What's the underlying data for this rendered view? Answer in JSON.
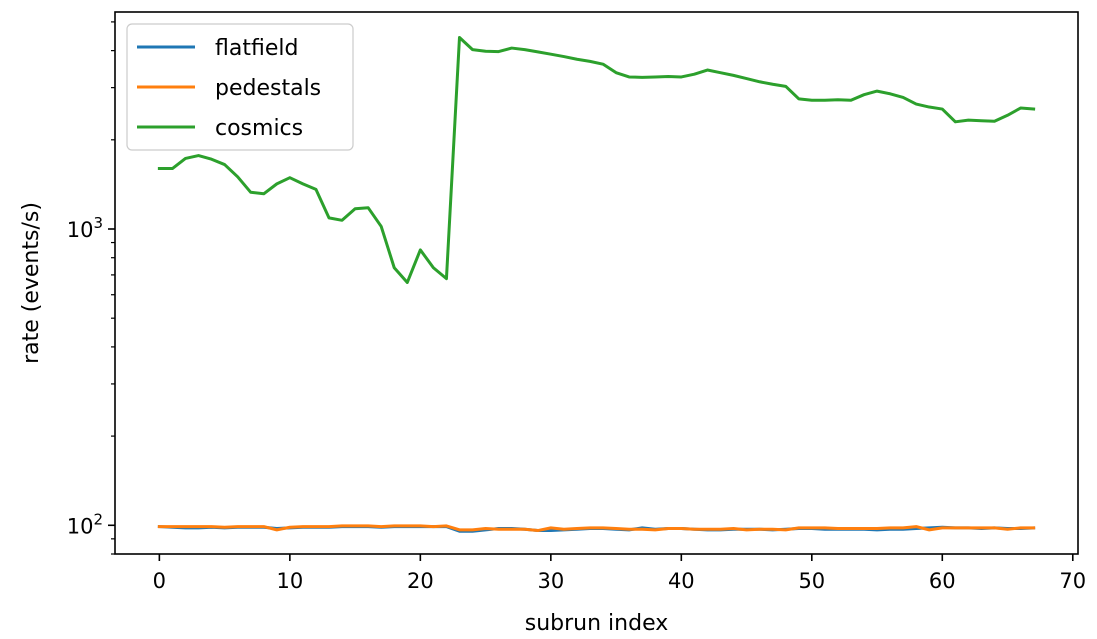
{
  "chart_data": {
    "type": "line",
    "title": "",
    "xlabel": "subrun index",
    "ylabel": "rate (events/s)",
    "xlim": [
      -3.4,
      70.4
    ],
    "ylim": [
      80,
      5400
    ],
    "yscale": "log",
    "xticks": [
      0,
      10,
      20,
      30,
      40,
      50,
      60,
      70
    ],
    "xtick_labels": [
      "0",
      "10",
      "20",
      "30",
      "40",
      "50",
      "60",
      "70"
    ],
    "yticks": [
      100,
      1000
    ],
    "ytick_labels_base": [
      "10",
      "10"
    ],
    "ytick_labels_exp": [
      "2",
      "3"
    ],
    "grid": false,
    "legend_position": "top-left",
    "series": [
      {
        "name": "flatfield",
        "color": "#1f77b4",
        "x": [
          0,
          1,
          2,
          3,
          4,
          5,
          6,
          7,
          8,
          9,
          10,
          11,
          12,
          13,
          14,
          15,
          16,
          17,
          18,
          19,
          20,
          21,
          22,
          23,
          24,
          25,
          26,
          27,
          28,
          29,
          30,
          31,
          32,
          33,
          34,
          35,
          36,
          37,
          38,
          39,
          40,
          41,
          42,
          43,
          44,
          45,
          46,
          47,
          48,
          49,
          50,
          51,
          52,
          53,
          54,
          55,
          56,
          57,
          58,
          59,
          60,
          61,
          62,
          63,
          64,
          65,
          66,
          67
        ],
        "y": [
          99,
          98.5,
          98,
          98,
          98.5,
          98,
          98.5,
          98.5,
          98.5,
          97.5,
          98,
          98.5,
          98.5,
          98.5,
          99,
          99,
          99,
          98.5,
          99,
          99,
          99,
          99,
          99,
          95.5,
          95.5,
          96.5,
          97.5,
          97.5,
          97,
          96,
          96,
          96.5,
          97,
          97.5,
          97.5,
          97,
          96.5,
          98,
          97,
          97.5,
          97.5,
          97,
          96.5,
          96.5,
          97,
          97,
          97,
          96.5,
          97,
          97.5,
          97.5,
          97,
          97,
          97,
          97,
          96.5,
          97,
          97,
          97.5,
          98,
          98.5,
          98,
          98,
          97.5,
          98,
          97.5,
          97.5,
          98
        ]
      },
      {
        "name": "pedestals",
        "color": "#ff7f0e",
        "x": [
          0,
          1,
          2,
          3,
          4,
          5,
          6,
          7,
          8,
          9,
          10,
          11,
          12,
          13,
          14,
          15,
          16,
          17,
          18,
          19,
          20,
          21,
          22,
          23,
          24,
          25,
          26,
          27,
          28,
          29,
          30,
          31,
          32,
          33,
          34,
          35,
          36,
          37,
          38,
          39,
          40,
          41,
          42,
          43,
          44,
          45,
          46,
          47,
          48,
          49,
          50,
          51,
          52,
          53,
          54,
          55,
          56,
          57,
          58,
          59,
          60,
          61,
          62,
          63,
          64,
          65,
          66,
          67
        ],
        "y": [
          99,
          99,
          99,
          99,
          99,
          98.5,
          99,
          99,
          99,
          96.5,
          98.5,
          99,
          99,
          99,
          99.5,
          99.5,
          99.5,
          99,
          99.5,
          99.5,
          99.5,
          99,
          99.5,
          96.5,
          96.5,
          97.5,
          97,
          97,
          97,
          96,
          98,
          97,
          97.5,
          98,
          98,
          97.5,
          97,
          97,
          96.5,
          97.5,
          97.5,
          97,
          97,
          97,
          97.5,
          96.5,
          97,
          97,
          96.5,
          98,
          98,
          98,
          97.5,
          97.5,
          97.5,
          97.5,
          98,
          98,
          99,
          96.5,
          98,
          98,
          98,
          98,
          98,
          97,
          98,
          98
        ]
      },
      {
        "name": "cosmics",
        "color": "#2ca02c",
        "x": [
          0,
          1,
          2,
          3,
          4,
          5,
          6,
          7,
          8,
          9,
          10,
          11,
          12,
          13,
          14,
          15,
          16,
          17,
          18,
          19,
          20,
          21,
          22,
          23,
          24,
          25,
          26,
          27,
          28,
          29,
          30,
          31,
          32,
          33,
          34,
          35,
          36,
          37,
          38,
          39,
          40,
          41,
          42,
          43,
          44,
          45,
          46,
          47,
          48,
          49,
          50,
          51,
          52,
          53,
          54,
          55,
          56,
          57,
          58,
          59,
          60,
          61,
          62,
          63,
          64,
          65,
          66,
          67
        ],
        "y": [
          1600,
          1600,
          1730,
          1770,
          1720,
          1650,
          1500,
          1330,
          1315,
          1420,
          1490,
          1420,
          1360,
          1090,
          1070,
          1170,
          1180,
          1020,
          740,
          660,
          850,
          740,
          680,
          4430,
          4030,
          3980,
          3970,
          4080,
          4030,
          3960,
          3890,
          3820,
          3740,
          3680,
          3600,
          3370,
          3260,
          3250,
          3260,
          3270,
          3260,
          3330,
          3440,
          3370,
          3300,
          3220,
          3140,
          3080,
          3030,
          2750,
          2720,
          2720,
          2730,
          2720,
          2840,
          2920,
          2860,
          2780,
          2640,
          2580,
          2540,
          2300,
          2330,
          2320,
          2310,
          2420,
          2560,
          2540
        ]
      }
    ]
  }
}
